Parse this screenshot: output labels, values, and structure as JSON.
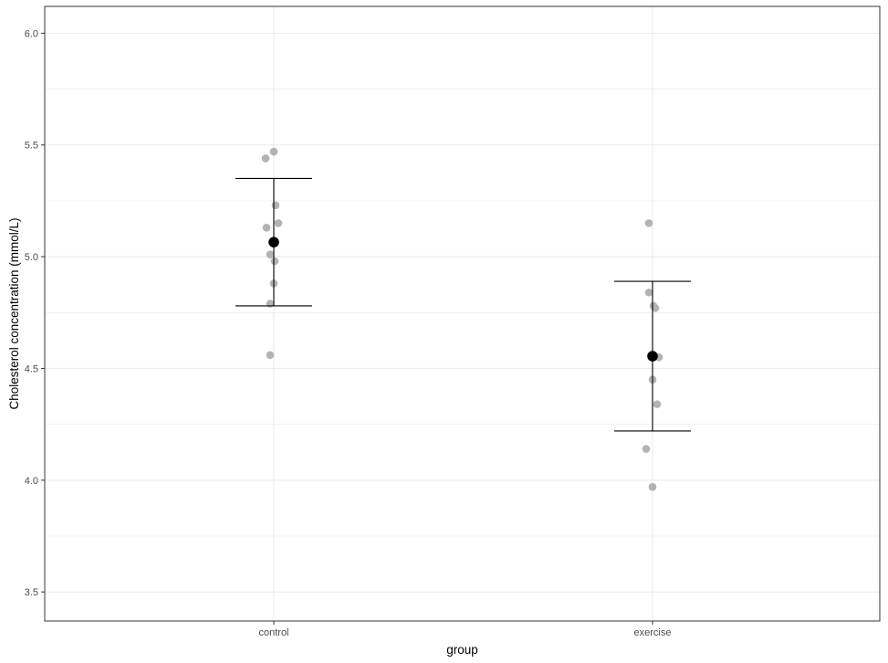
{
  "chart_data": {
    "type": "scatter",
    "xlabel": "group",
    "ylabel": "Cholesterol concentration (mmol/L)",
    "categories": [
      "control",
      "exercise"
    ],
    "ylim": [
      3.37,
      6.12
    ],
    "y_ticks": [
      "3.5",
      "4.0",
      "4.5",
      "5.0",
      "5.5",
      "6.0"
    ],
    "grid": true,
    "points": [
      {
        "group": "control",
        "values": [
          5.47,
          5.44,
          5.23,
          5.15,
          5.13,
          5.01,
          4.98,
          4.88,
          4.79,
          4.56
        ]
      },
      {
        "group": "exercise",
        "values": [
          5.15,
          4.84,
          4.78,
          4.77,
          4.56,
          4.55,
          4.45,
          4.34,
          4.14,
          3.97
        ]
      }
    ],
    "summary": [
      {
        "group": "control",
        "mean": 5.065,
        "lower": 4.78,
        "upper": 5.35
      },
      {
        "group": "exercise",
        "mean": 4.555,
        "lower": 4.22,
        "upper": 4.89
      }
    ],
    "colors": {
      "points": "#b3b3b3",
      "mean": "#000000",
      "errorbar": "#000000",
      "grid": "#ebebeb",
      "panel_border": "#333333"
    }
  }
}
